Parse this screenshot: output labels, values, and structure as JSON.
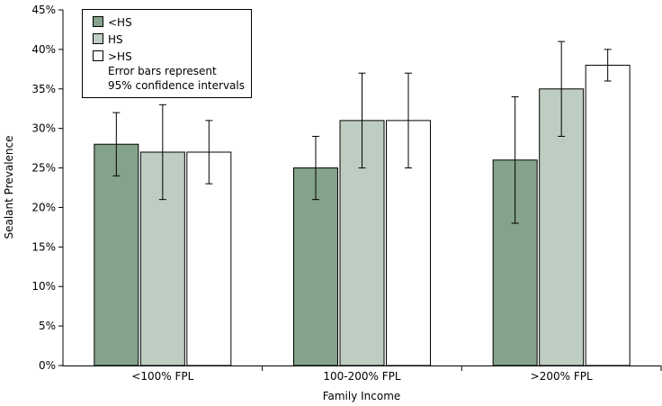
{
  "chart_data": {
    "type": "bar",
    "title": "",
    "xlabel": "Family Income",
    "ylabel": "Sealant Prevalence",
    "ylim": [
      0,
      45
    ],
    "yticks": [
      "0%",
      "5%",
      "10%",
      "15%",
      "20%",
      "25%",
      "30%",
      "35%",
      "40%",
      "45%"
    ],
    "ytick_values": [
      0,
      5,
      10,
      15,
      20,
      25,
      30,
      35,
      40,
      45
    ],
    "categories": [
      "<100% FPL",
      "100-200% FPL",
      ">200% FPL"
    ],
    "series": [
      {
        "name": "<HS",
        "color": "#84a38a",
        "values": [
          28,
          25,
          26
        ],
        "ci_low": [
          24,
          21,
          18
        ],
        "ci_high": [
          32,
          29,
          34
        ]
      },
      {
        "name": "HS",
        "color": "#bdcdc1",
        "values": [
          27,
          31,
          35
        ],
        "ci_low": [
          21,
          25,
          29
        ],
        "ci_high": [
          33,
          37,
          41
        ]
      },
      {
        "name": ">HS",
        "color": "#ffffff",
        "values": [
          27,
          31,
          38
        ],
        "ci_low": [
          23,
          25,
          36
        ],
        "ci_high": [
          31,
          37,
          40
        ]
      }
    ],
    "legend": {
      "placement": "top-left",
      "note_lines": [
        "Error bars represent",
        "95% confidence intervals"
      ]
    },
    "grid": false
  }
}
